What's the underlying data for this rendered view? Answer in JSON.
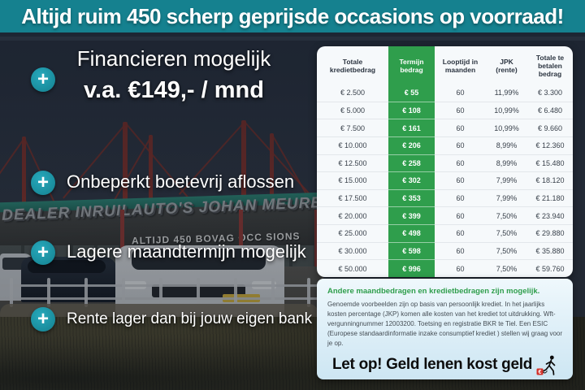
{
  "header": {
    "title": "Altijd ruim 450 scherp geprijsde occasions op voorraad!"
  },
  "usps": [
    {
      "title": "Financieren mogelijk",
      "subtitle": "v.a. €149,- / mnd"
    },
    {
      "title": "Onbeperkt boetevrij aflossen"
    },
    {
      "title": "Lagere maandtermijn mogelijk"
    },
    {
      "title": "Rente lager dan bij jouw eigen bank"
    }
  ],
  "scene": {
    "plus_icon": "+",
    "dealer_sign": "DEALER INRUILAUTO'S JOHAN MEURE",
    "occasions_sign": "ALTIJD 450 BOVAG OCC SIONS"
  },
  "finance_table": {
    "columns": [
      "Totale kredietbedrag",
      "Termijn bedrag",
      "Looptijd in maanden",
      "JPK (rente)",
      "Totale te betalen bedrag"
    ],
    "highlighted_column": "Termijn bedrag",
    "rows": [
      [
        "€ 2.500",
        "€ 55",
        "60",
        "11,99%",
        "€ 3.300"
      ],
      [
        "€ 5.000",
        "€ 108",
        "60",
        "10,99%",
        "€ 6.480"
      ],
      [
        "€ 7.500",
        "€ 161",
        "60",
        "10,99%",
        "€ 9.660"
      ],
      [
        "€ 10.000",
        "€ 206",
        "60",
        "8,99%",
        "€ 12.360"
      ],
      [
        "€ 12.500",
        "€ 258",
        "60",
        "8,99%",
        "€ 15.480"
      ],
      [
        "€ 15.000",
        "€ 302",
        "60",
        "7,99%",
        "€ 18.120"
      ],
      [
        "€ 17.500",
        "€ 353",
        "60",
        "7,99%",
        "€ 21.180"
      ],
      [
        "€ 20.000",
        "€ 399",
        "60",
        "7,50%",
        "€ 23.940"
      ],
      [
        "€ 25.000",
        "€ 498",
        "60",
        "7,50%",
        "€ 29.880"
      ],
      [
        "€ 30.000",
        "€ 598",
        "60",
        "7,50%",
        "€ 35.880"
      ],
      [
        "€ 50.000",
        "€ 996",
        "60",
        "7,50%",
        "€ 59.760"
      ]
    ]
  },
  "disclaimer": {
    "highlight": "Andere maandbedragen en kredietbedragen zijn mogelijk.",
    "body": "Genoemde voorbeelden zijn op basis van persoonlijk krediet. In het jaarlijks kosten percentage (JKP) komen alle kosten van het krediet tot uitdrukking. Wft-vergunningnummer 12003200. Toetsing en registratie BKR te Tiel. Een ESIC (Europese standaardinformatie inzake consumptief krediet ) stellen wij graag voor je op.",
    "warning": "Let op! Geld lenen kost geld"
  },
  "colors": {
    "teal_banner": "#15818f",
    "green_accent": "#2f9e4c",
    "dark_navy": "#262f3c",
    "panel_blue": "#cde6f3",
    "warning_red": "#d3312a"
  }
}
